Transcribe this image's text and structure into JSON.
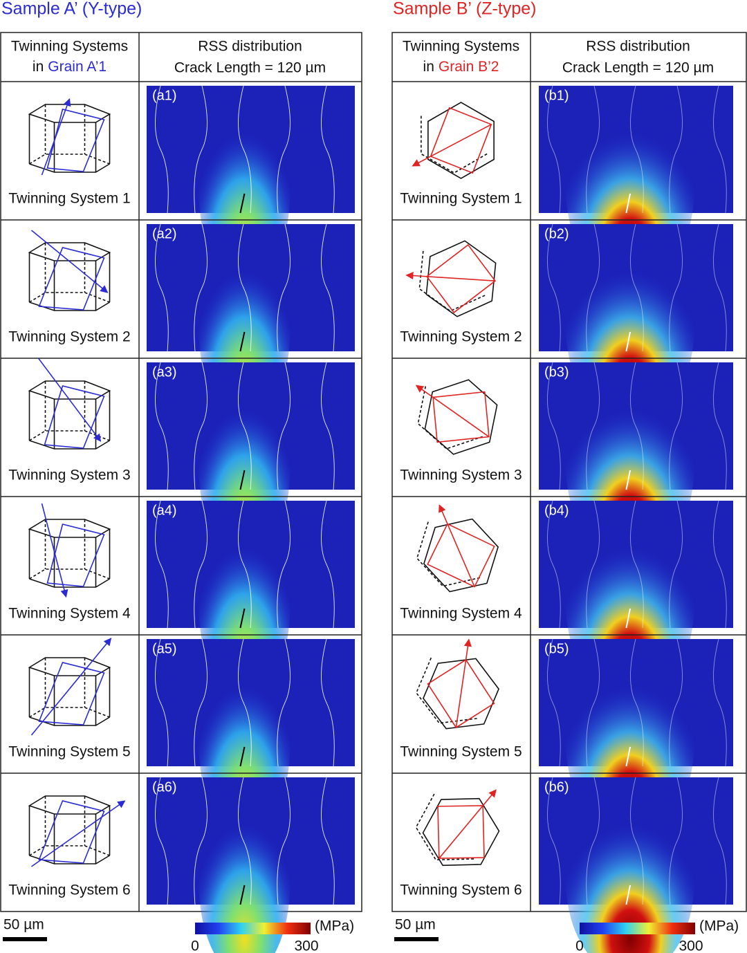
{
  "panels": [
    {
      "title": "Sample A’ (Y-type)",
      "color": "#2b2bd6",
      "header": {
        "line1": "Twinning Systems",
        "in": "in",
        "grain": "Grain A’1",
        "rss": "RSS distribution",
        "crack": "Crack Length = 120 µm"
      },
      "rows": [
        {
          "label": "Twinning System 1",
          "panel": "(a1)"
        },
        {
          "label": "Twinning System 2",
          "panel": "(a2)"
        },
        {
          "label": "Twinning System 3",
          "panel": "(a3)"
        },
        {
          "label": "Twinning System 4",
          "panel": "(a4)"
        },
        {
          "label": "Twinning System 5",
          "panel": "(a5)"
        },
        {
          "label": "Twinning System 6",
          "panel": "(a6)"
        }
      ],
      "scale_bar": "50 µm",
      "colorbar": {
        "min": 0,
        "max": 300,
        "unit": "(MPa)"
      }
    },
    {
      "title": "Sample B’ (Z-type)",
      "color": "#e02424",
      "header": {
        "line1": "Twinning Systems",
        "in": "in",
        "grain": "Grain B’2",
        "rss": "RSS distribution",
        "crack": "Crack Length = 120 µm"
      },
      "rows": [
        {
          "label": "Twinning System 1",
          "panel": "(b1)"
        },
        {
          "label": "Twinning System 2",
          "panel": "(b2)"
        },
        {
          "label": "Twinning System 3",
          "panel": "(b3)"
        },
        {
          "label": "Twinning System 4",
          "panel": "(b4)"
        },
        {
          "label": "Twinning System 5",
          "panel": "(b5)"
        },
        {
          "label": "Twinning System 6",
          "panel": "(b6)"
        }
      ],
      "scale_bar": "50 µm",
      "colorbar": {
        "min": 0,
        "max": 300,
        "unit": "(MPa)"
      }
    }
  ]
}
